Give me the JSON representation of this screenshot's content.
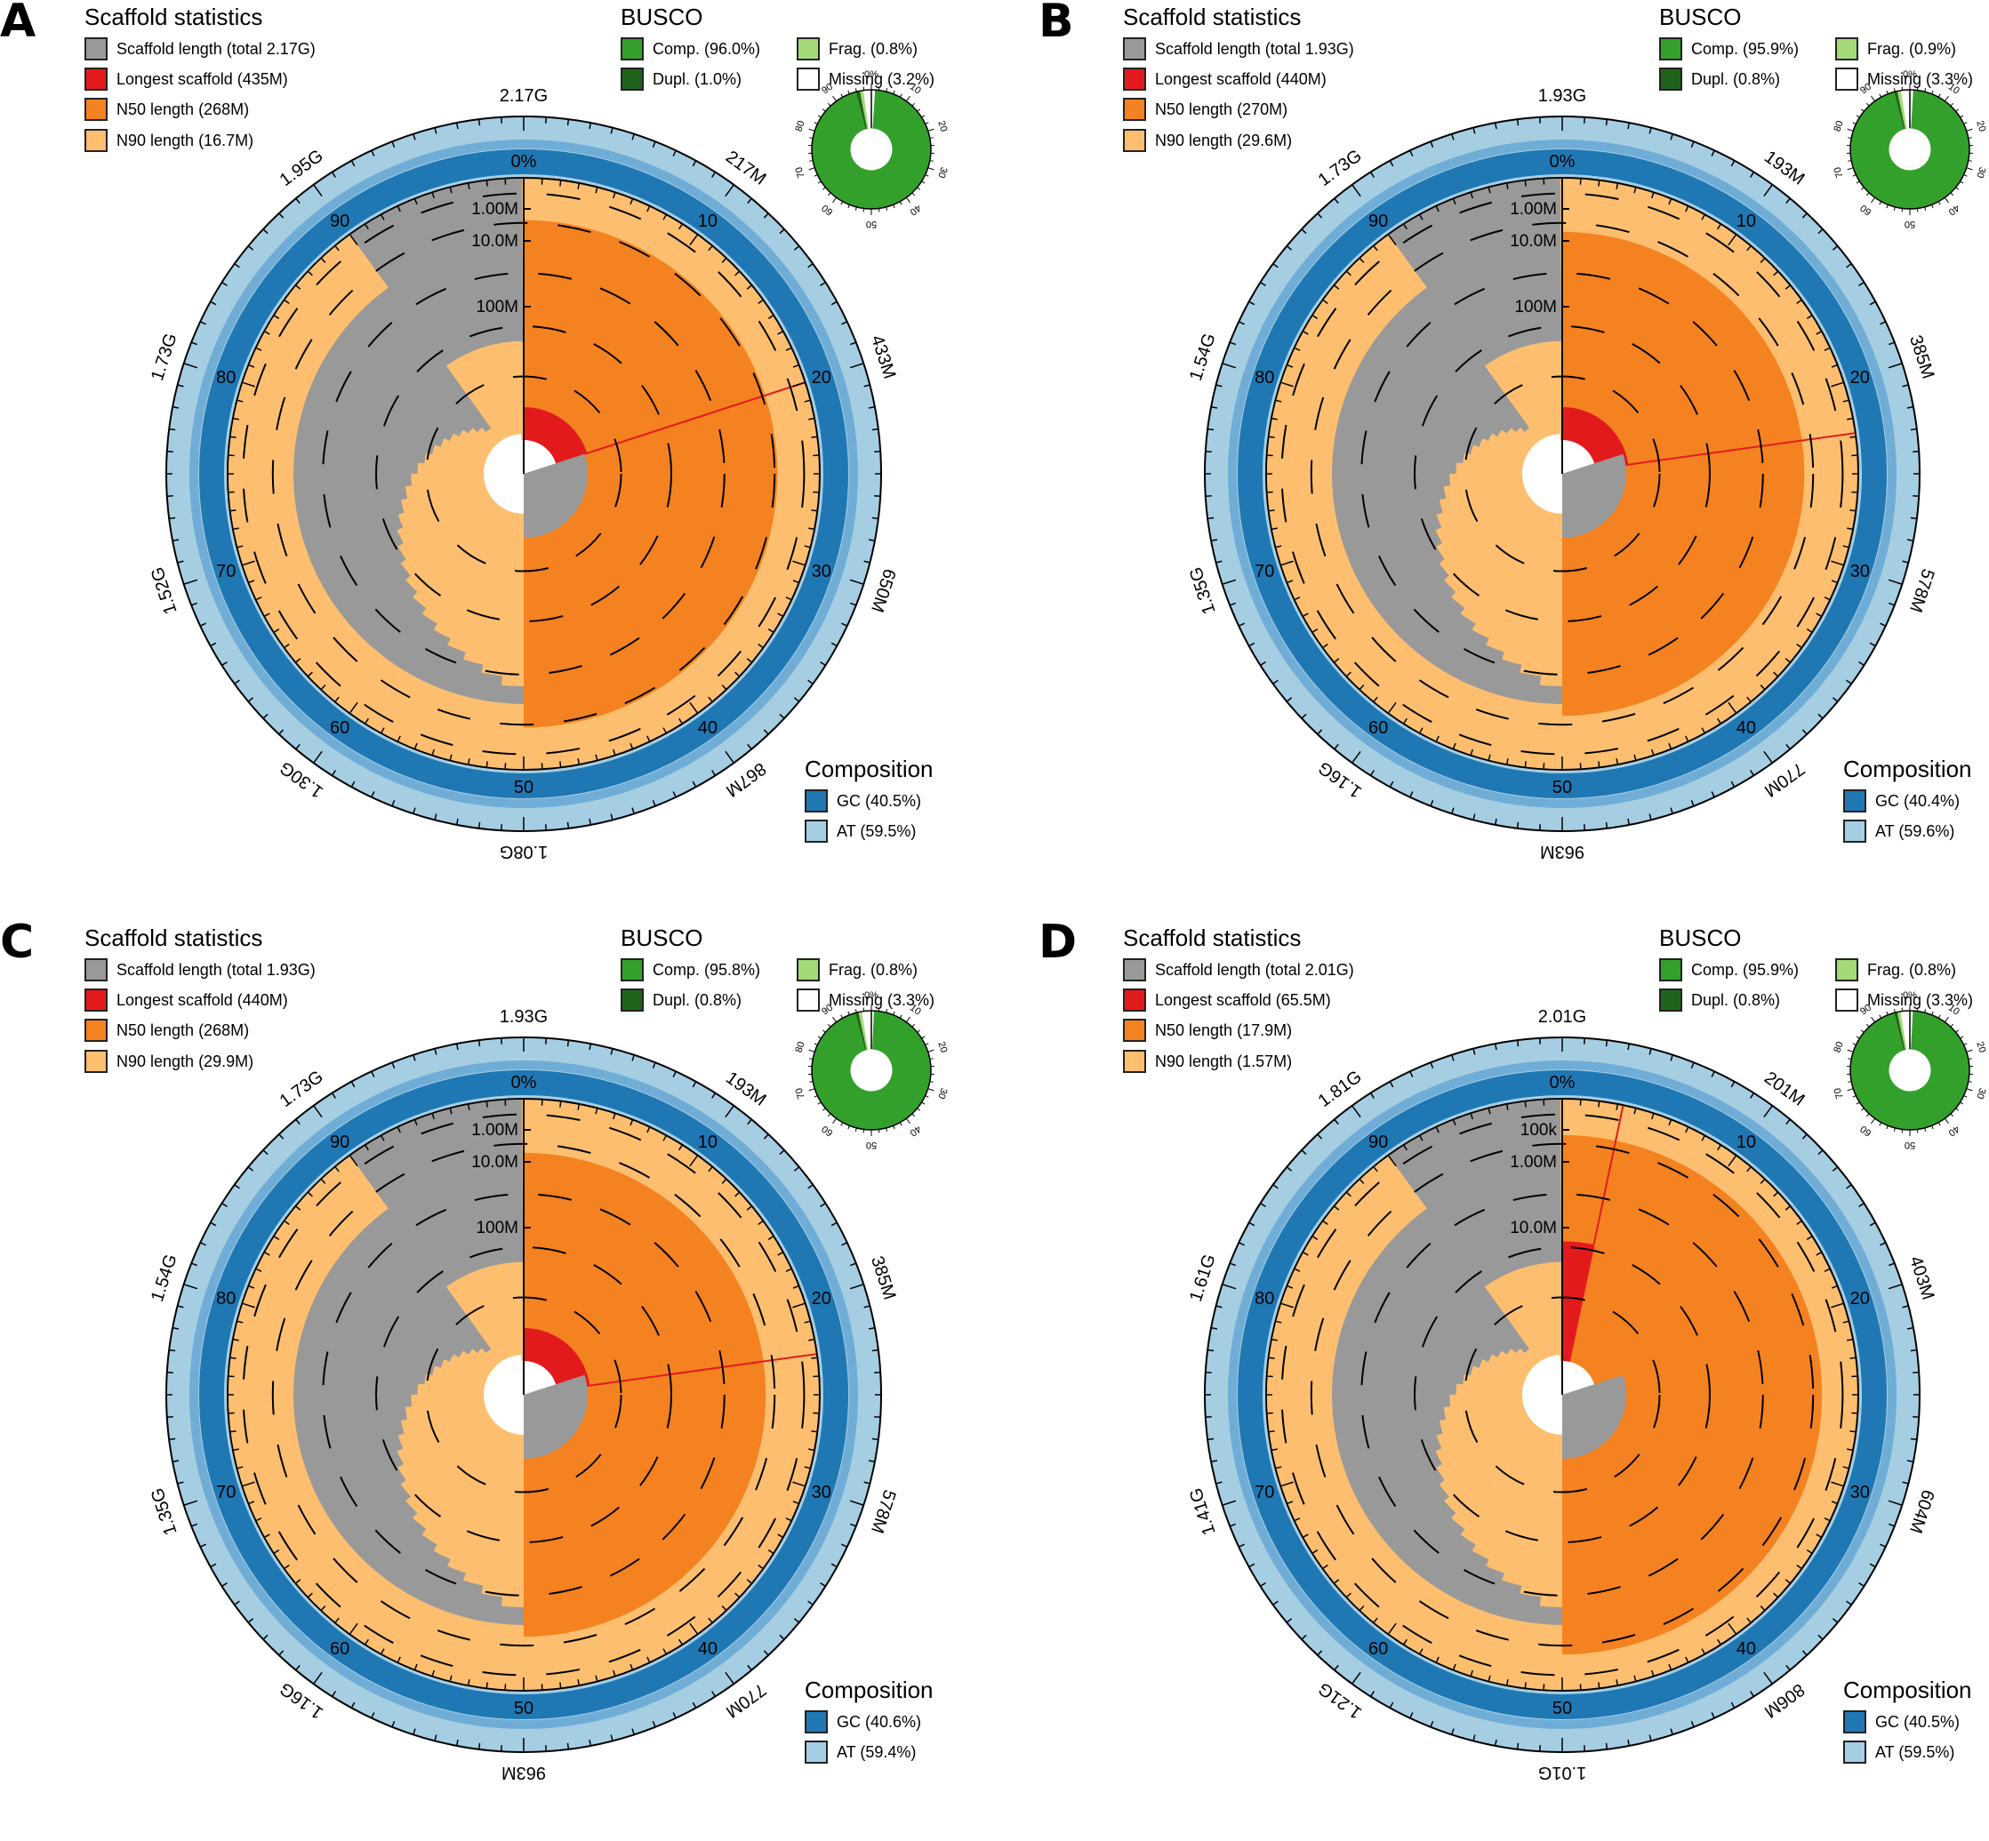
{
  "colors": {
    "scaffold": "#999999",
    "longest": "#e31a1c",
    "n50": "#f58220",
    "n90": "#fdbf6f",
    "gc": "#1f78b4",
    "at": "#a6cee3",
    "comp": "#33a02c",
    "dupl": "#20641c",
    "frag": "#a3d977",
    "missing": "#ffffff"
  },
  "panels": [
    {
      "letter": "A",
      "scaffold_title": "Scaffold statistics",
      "busco_title": "BUSCO",
      "composition_title": "Composition",
      "scaffold_legend": [
        "Scaffold length (total 2.17G)",
        "Longest scaffold (435M)",
        "N50 length (268M)",
        "N90 length (16.7M)"
      ],
      "busco_legend": [
        "Comp. (96.0%)",
        "Dupl. (1.0%)",
        "Frag. (0.8%)",
        "Missing (3.2%)"
      ],
      "composition_legend": [
        "GC (40.5%)",
        "AT (59.5%)"
      ],
      "outer_ticks": [
        "2.17G",
        "217M",
        "433M",
        "650M",
        "867M",
        "1.08G",
        "1.30G",
        "1.52G",
        "1.73G",
        "1.95G"
      ],
      "radial_labels": [
        "1.00M",
        "10.0M",
        "100M"
      ],
      "chart_data": {
        "type": "snail",
        "total_length": "2.17G",
        "longest_pct": 0.2,
        "longest_radius_frac": 0.226,
        "n50_pct": 0.5,
        "n50_radius_frac": 0.86,
        "n90_pct": 0.9,
        "gc_pct": 40.5,
        "at_pct": 59.5,
        "busco": {
          "comp": 96.0,
          "dupl": 1.0,
          "frag": 0.8,
          "missing": 3.2
        }
      }
    },
    {
      "letter": "B",
      "scaffold_title": "Scaffold statistics",
      "busco_title": "BUSCO",
      "composition_title": "Composition",
      "scaffold_legend": [
        "Scaffold length (total 1.93G)",
        "Longest scaffold (440M)",
        "N50 length (270M)",
        "N90 length (29.6M)"
      ],
      "busco_legend": [
        "Comp. (95.9%)",
        "Dupl. (0.8%)",
        "Frag. (0.9%)",
        "Missing (3.3%)"
      ],
      "composition_legend": [
        "GC (40.4%)",
        "AT (59.6%)"
      ],
      "outer_ticks": [
        "1.93G",
        "193M",
        "385M",
        "578M",
        "770M",
        "963M",
        "1.16G",
        "1.35G",
        "1.54G",
        "1.73G"
      ],
      "radial_labels": [
        "1.00M",
        "10.0M",
        "100M"
      ],
      "chart_data": {
        "type": "snail",
        "total_length": "1.93G",
        "longest_pct": 0.228,
        "longest_radius_frac": 0.226,
        "n50_pct": 0.5,
        "n50_radius_frac": 0.82,
        "n90_pct": 0.9,
        "gc_pct": 40.4,
        "at_pct": 59.6,
        "busco": {
          "comp": 95.9,
          "dupl": 0.8,
          "frag": 0.9,
          "missing": 3.3
        }
      }
    },
    {
      "letter": "C",
      "scaffold_title": "Scaffold statistics",
      "busco_title": "BUSCO",
      "composition_title": "Composition",
      "scaffold_legend": [
        "Scaffold length (total 1.93G)",
        "Longest scaffold (440M)",
        "N50 length (268M)",
        "N90 length (29.9M)"
      ],
      "busco_legend": [
        "Comp. (95.8%)",
        "Dupl. (0.8%)",
        "Frag. (0.8%)",
        "Missing (3.3%)"
      ],
      "composition_legend": [
        "GC (40.6%)",
        "AT (59.4%)"
      ],
      "outer_ticks": [
        "1.93G",
        "193M",
        "385M",
        "578M",
        "770M",
        "963M",
        "1.16G",
        "1.35G",
        "1.54G",
        "1.73G"
      ],
      "radial_labels": [
        "1.00M",
        "10.0M",
        "100M"
      ],
      "chart_data": {
        "type": "snail",
        "total_length": "1.93G",
        "longest_pct": 0.228,
        "longest_radius_frac": 0.226,
        "n50_pct": 0.5,
        "n50_radius_frac": 0.82,
        "n90_pct": 0.9,
        "gc_pct": 40.6,
        "at_pct": 59.4,
        "busco": {
          "comp": 95.8,
          "dupl": 0.8,
          "frag": 0.8,
          "missing": 3.3
        }
      }
    },
    {
      "letter": "D",
      "scaffold_title": "Scaffold statistics",
      "busco_title": "BUSCO",
      "composition_title": "Composition",
      "scaffold_legend": [
        "Scaffold length (total 2.01G)",
        "Longest scaffold (65.5M)",
        "N50 length (17.9M)",
        "N90 length (1.57M)"
      ],
      "busco_legend": [
        "Comp. (95.9%)",
        "Dupl. (0.8%)",
        "Frag. (0.8%)",
        "Missing (3.3%)"
      ],
      "composition_legend": [
        "GC (40.5%)",
        "AT (59.5%)"
      ],
      "outer_ticks": [
        "2.01G",
        "201M",
        "403M",
        "604M",
        "806M",
        "1.01G",
        "1.21G",
        "1.41G",
        "1.61G",
        "1.81G"
      ],
      "radial_labels": [
        "100k",
        "1.00M",
        "10.0M"
      ],
      "chart_data": {
        "type": "snail",
        "total_length": "2.01G",
        "longest_pct": 0.033,
        "longest_radius_frac": 0.52,
        "n50_pct": 0.5,
        "n50_radius_frac": 0.88,
        "n90_pct": 0.9,
        "gc_pct": 40.5,
        "at_pct": 59.5,
        "busco": {
          "comp": 95.9,
          "dupl": 0.8,
          "frag": 0.8,
          "missing": 3.3
        }
      }
    }
  ]
}
